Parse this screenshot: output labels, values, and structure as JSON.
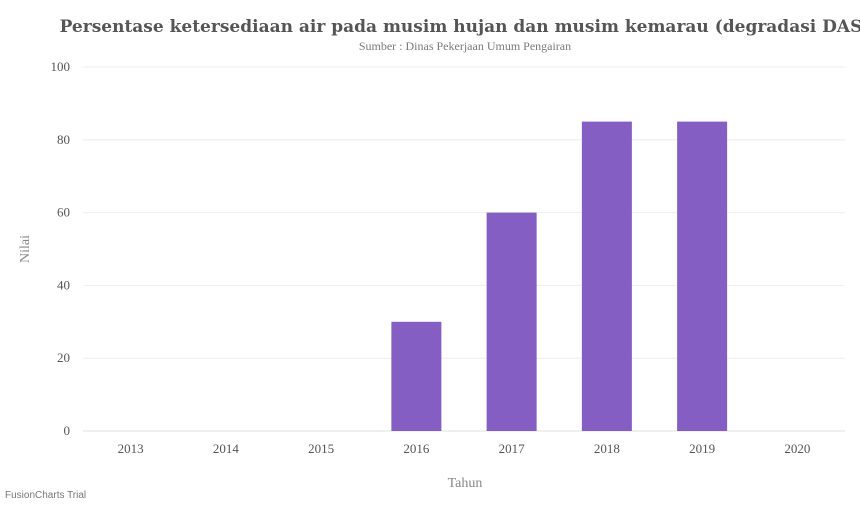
{
  "chart_data": {
    "type": "bar",
    "title": "Persentase ketersediaan air pada musim hujan dan musim kemarau (degradasi DAS)",
    "subtitle": "Sumber : Dinas Pekerjaan Umum Pengairan",
    "xlabel": "Tahun",
    "ylabel": "Nilai",
    "categories": [
      "2013",
      "2014",
      "2015",
      "2016",
      "2017",
      "2018",
      "2019",
      "2020"
    ],
    "values": [
      0,
      0,
      0,
      30,
      60,
      85,
      85,
      0
    ],
    "ylim": [
      0,
      100
    ],
    "yticks": [
      "0",
      "20",
      "40",
      "60",
      "80",
      "100"
    ],
    "grid": true,
    "bar_color": "#845ec2"
  },
  "watermark": "FusionCharts Trial"
}
